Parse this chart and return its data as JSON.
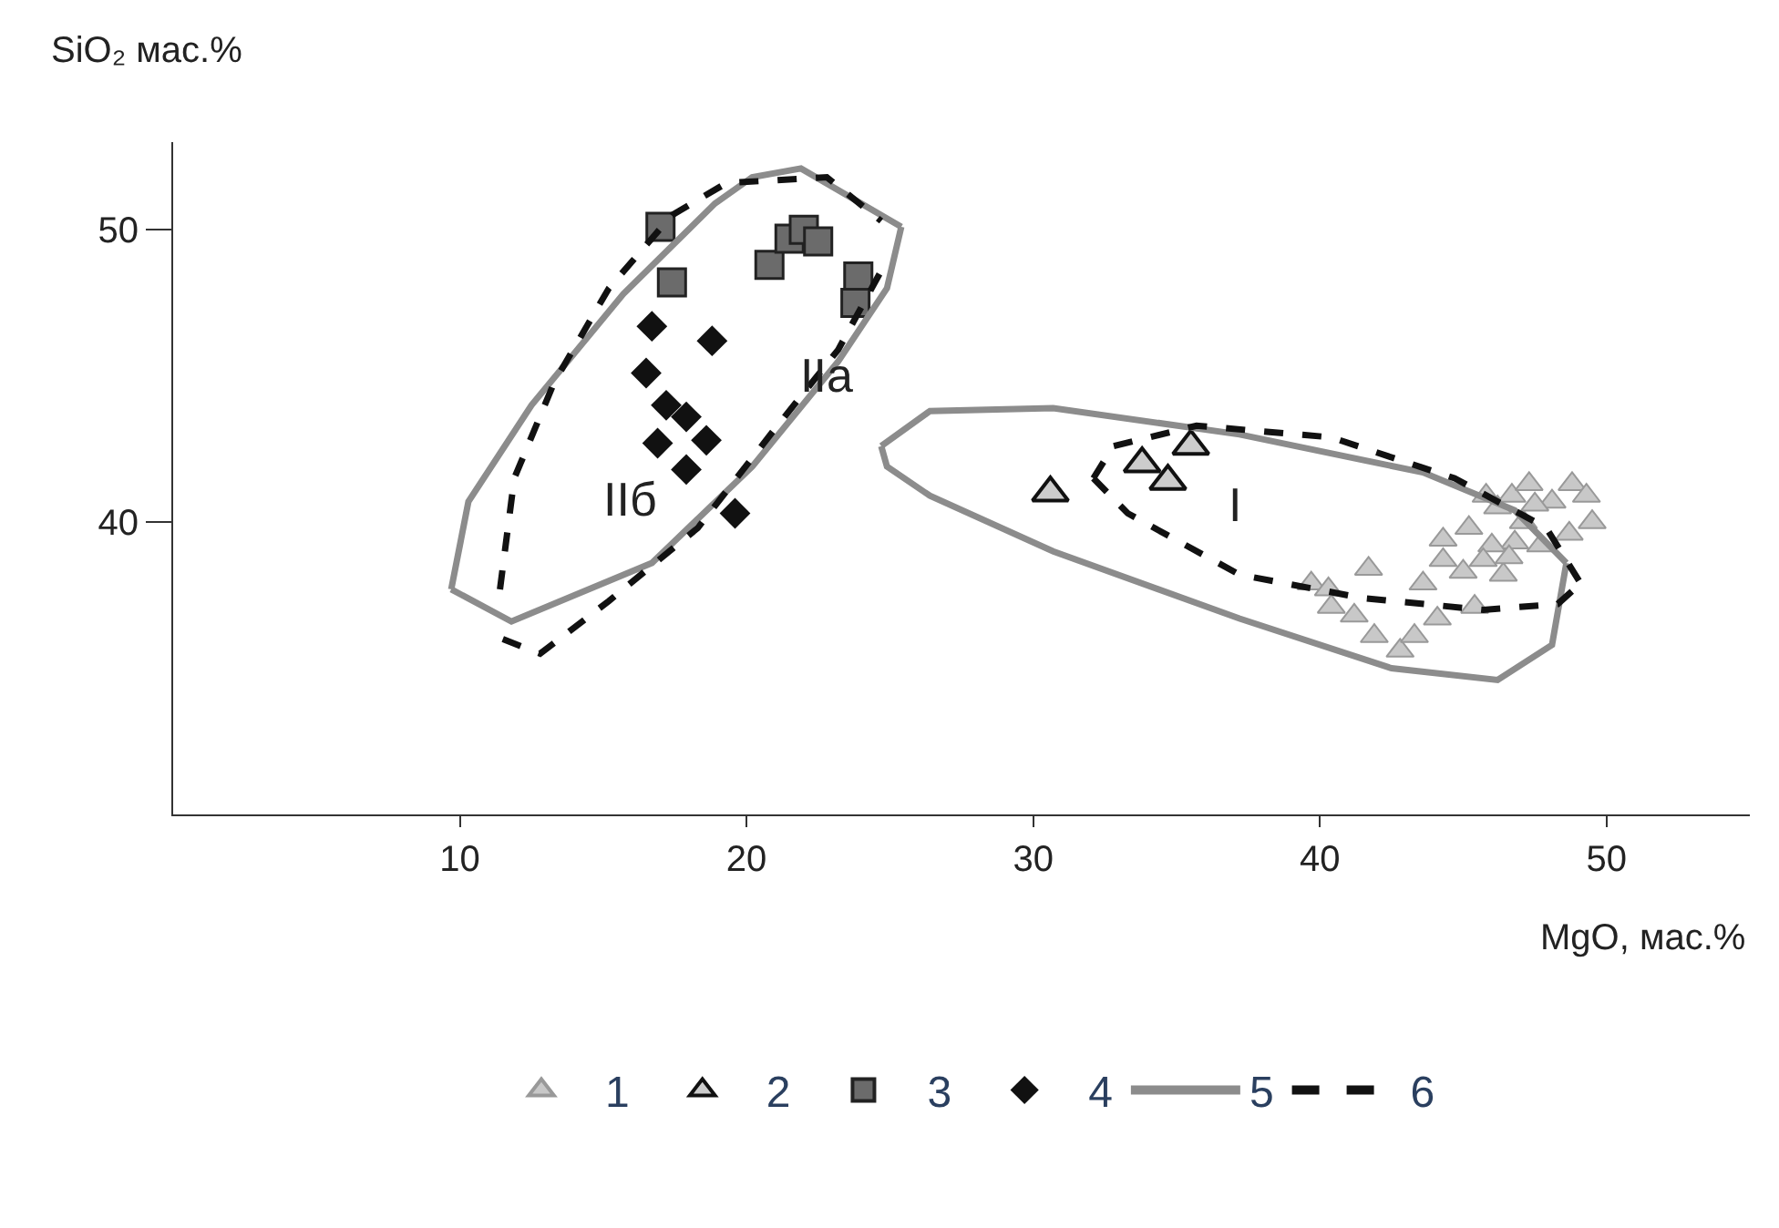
{
  "chart_data": {
    "type": "scatter",
    "xlabel": "MgO, мас.%",
    "ylabel": "SiO₂ мас.%",
    "xlim": [
      0,
      55
    ],
    "xticks": [
      10,
      20,
      30,
      40,
      50
    ],
    "ylim": [
      30,
      53
    ],
    "yticks": [
      40,
      50
    ],
    "legend": "bottom",
    "annotations": [
      "IIa",
      "IIб",
      "I"
    ],
    "series": [
      {
        "name": "1",
        "marker": "triangle",
        "color": "#c8c8c8",
        "x": [
          39.7,
          40.3,
          41.7,
          40.4,
          41.2,
          41.9,
          42.8,
          43.3,
          43.6,
          44.3,
          44.1,
          45.0,
          45.4,
          46.4,
          44.3,
          45.2,
          46.2,
          46.7,
          47.3,
          48.1,
          48.8,
          49.3,
          49.5,
          48.7,
          47.7,
          46.8,
          46.0,
          45.7,
          47.1,
          47.5,
          45.8,
          46.6
        ],
        "values": [
          37.9,
          37.7,
          38.4,
          37.1,
          36.8,
          36.1,
          35.6,
          36.1,
          37.9,
          38.7,
          36.7,
          38.3,
          37.1,
          38.2,
          39.4,
          39.8,
          40.5,
          40.9,
          41.3,
          40.7,
          41.3,
          40.9,
          40.0,
          39.6,
          39.2,
          39.3,
          39.2,
          38.7,
          40.0,
          40.6,
          40.9,
          38.8
        ]
      },
      {
        "name": "2",
        "marker": "triangle",
        "color": "#cccccc",
        "x": [
          30.6,
          33.8,
          34.7,
          35.5
        ],
        "values": [
          41.0,
          42.0,
          41.4,
          42.6
        ]
      },
      {
        "name": "3",
        "marker": "square",
        "color": "#6b6b6b",
        "x": [
          17.0,
          17.4,
          20.8,
          21.5,
          22.0,
          22.5,
          23.9,
          23.8
        ],
        "values": [
          50.1,
          48.2,
          48.8,
          49.7,
          50.0,
          49.6,
          48.4,
          47.5
        ]
      },
      {
        "name": "4",
        "marker": "diamond",
        "color": "#111111",
        "x": [
          16.7,
          18.8,
          16.5,
          17.2,
          17.9,
          18.6,
          16.9,
          17.9,
          19.6
        ],
        "values": [
          46.7,
          46.2,
          45.1,
          44.0,
          43.6,
          42.8,
          42.7,
          41.8,
          40.3
        ]
      },
      {
        "name": "5",
        "type": "line",
        "marker": "none",
        "line_style": "solid",
        "color": "#8c8c8c",
        "x": [
          9.7,
          10.3,
          12.5,
          15.7,
          18.9,
          20.2,
          21.9,
          25.4
        ],
        "values": [
          37.7,
          40.7,
          44.0,
          47.8,
          50.9,
          51.8,
          52.1,
          50.1
        ]
      },
      {
        "type": "line",
        "marker": "none",
        "line_style": "solid",
        "color": "#8c8c8c",
        "x": [
          9.7,
          11.8,
          16.7,
          20.2,
          23.2,
          24.9,
          25.4
        ],
        "values": [
          37.7,
          36.6,
          38.6,
          41.9,
          45.5,
          48.0,
          50.1
        ]
      },
      {
        "type": "line",
        "marker": "none",
        "line_style": "solid",
        "color": "#8c8c8c",
        "x": [
          24.7,
          26.4,
          30.7,
          37.2,
          43.6,
          46.8,
          48.6
        ],
        "values": [
          42.6,
          43.8,
          43.9,
          43.0,
          41.7,
          40.4,
          38.6
        ]
      },
      {
        "type": "line",
        "marker": "none",
        "line_style": "solid",
        "color": "#8c8c8c",
        "x": [
          24.7,
          24.9,
          26.4,
          30.7,
          37.2,
          42.5,
          46.2,
          48.1,
          48.6
        ],
        "values": [
          42.6,
          41.9,
          40.9,
          39.0,
          36.7,
          35.0,
          34.6,
          35.8,
          38.6
        ]
      },
      {
        "name": "6",
        "type": "line",
        "marker": "none",
        "line_style": "dashed",
        "color": "#111111",
        "x": [
          11.4,
          11.9,
          13.3,
          15.2,
          17.4,
          19.3,
          22.8,
          24.7
        ],
        "values": [
          37.7,
          41.5,
          44.8,
          48.0,
          50.5,
          51.6,
          51.8,
          50.3
        ]
      },
      {
        "type": "line",
        "marker": "none",
        "line_style": "dashed",
        "color": "#111111",
        "x": [
          11.5,
          12.8,
          15.2,
          18.3,
          21.0,
          23.2,
          24.7
        ],
        "values": [
          36.0,
          35.5,
          37.3,
          39.8,
          43.2,
          45.9,
          48.6
        ]
      },
      {
        "type": "line",
        "marker": "none",
        "line_style": "dashed",
        "color": "#111111",
        "x": [
          32.1,
          32.8,
          35.7,
          40.4,
          44.7,
          47.9,
          49.1
        ],
        "values": [
          41.5,
          42.6,
          43.3,
          42.9,
          41.5,
          39.8,
          37.9
        ]
      },
      {
        "type": "line",
        "marker": "none",
        "line_style": "dashed",
        "color": "#111111",
        "x": [
          32.1,
          33.3,
          37.2,
          41.5,
          45.7,
          48.3,
          49.1
        ],
        "values": [
          41.5,
          40.3,
          38.2,
          37.4,
          37.0,
          37.2,
          37.9
        ]
      }
    ]
  }
}
